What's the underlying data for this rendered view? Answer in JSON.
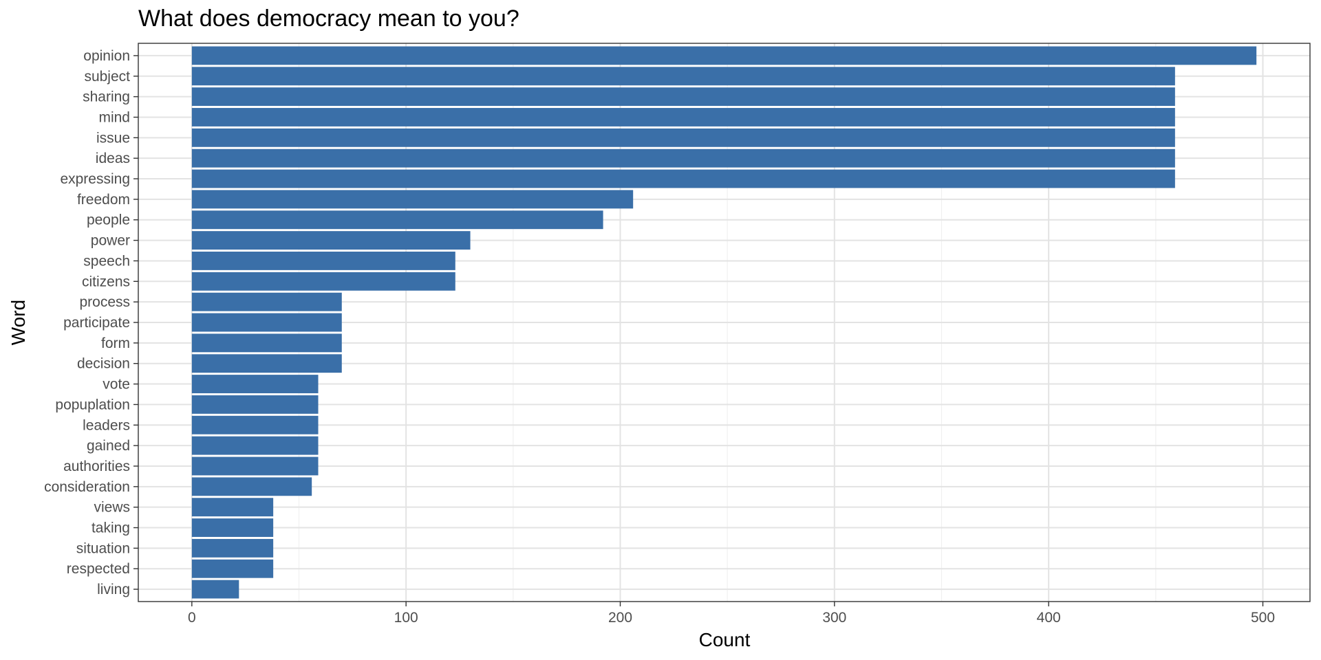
{
  "chart_data": {
    "type": "bar",
    "orientation": "horizontal",
    "title": "What does democracy mean to you?",
    "xlabel": "Count",
    "ylabel": "Word",
    "xlim": [
      -25,
      522
    ],
    "xticks": [
      0,
      100,
      200,
      300,
      400,
      500
    ],
    "grid": true,
    "legend": "none",
    "bar_color": "#3a6fa8",
    "categories": [
      "opinion",
      "subject",
      "sharing",
      "mind",
      "issue",
      "ideas",
      "expressing",
      "freedom",
      "people",
      "power",
      "speech",
      "citizens",
      "process",
      "participate",
      "form",
      "decision",
      "vote",
      "popuplation",
      "leaders",
      "gained",
      "authorities",
      "consideration",
      "views",
      "taking",
      "situation",
      "respected",
      "living"
    ],
    "values": [
      497,
      459,
      459,
      459,
      459,
      459,
      459,
      206,
      192,
      130,
      123,
      123,
      70,
      70,
      70,
      70,
      59,
      59,
      59,
      59,
      59,
      56,
      38,
      38,
      38,
      38,
      22
    ]
  }
}
